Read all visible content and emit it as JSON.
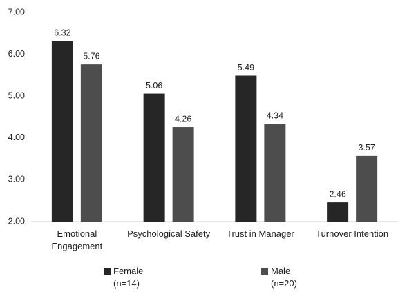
{
  "chart_data": {
    "type": "bar",
    "categories": [
      "Emotional Engagement",
      "Psychological Safety",
      "Trust in Manager",
      "Turnover Intention"
    ],
    "series": [
      {
        "name": "Female (n=14)",
        "color": "#262626",
        "values": [
          6.32,
          5.06,
          5.49,
          2.46
        ]
      },
      {
        "name": "Male (n=20)",
        "color": "#4d4d4d",
        "values": [
          5.76,
          4.26,
          4.34,
          3.57
        ]
      }
    ],
    "ylim": [
      2,
      7
    ],
    "yticks": [
      {
        "value": 2,
        "label": "2.00"
      },
      {
        "value": 3,
        "label": "3.00"
      },
      {
        "value": 4,
        "label": "4.00"
      },
      {
        "value": 5,
        "label": "5.00"
      },
      {
        "value": 6,
        "label": "6.00"
      },
      {
        "value": 7,
        "label": "7.00"
      }
    ],
    "grid": false,
    "legend": "bottom"
  }
}
